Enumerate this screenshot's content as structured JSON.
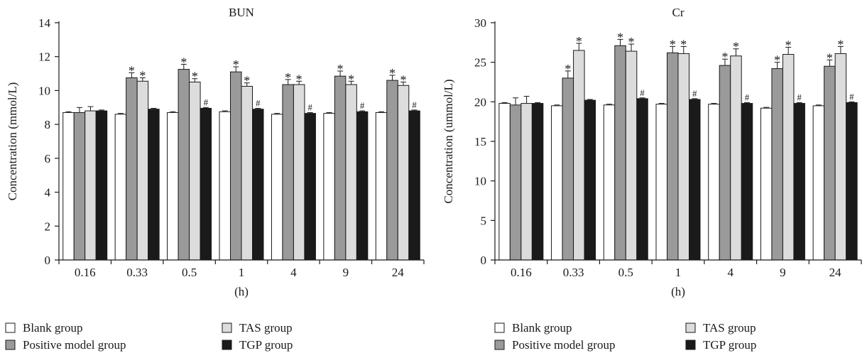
{
  "colors": {
    "Blank group": "#ffffff",
    "Positive model group": "#9a9a9a",
    "TAS group": "#dcdcdc",
    "TGP group": "#1a1a1a"
  },
  "chart_data": [
    {
      "type": "bar",
      "title": "BUN",
      "xlabel": "(h)",
      "ylabel": "Concentration (mmol/L)",
      "ylim": [
        0,
        14
      ],
      "yticks": [
        0,
        2,
        4,
        6,
        8,
        10,
        12,
        14
      ],
      "categories": [
        "0.16",
        "0.33",
        "0.5",
        "1",
        "4",
        "9",
        "24"
      ],
      "series": [
        {
          "name": "Blank group",
          "values": [
            8.7,
            8.6,
            8.7,
            8.75,
            8.6,
            8.65,
            8.7
          ],
          "errors": [
            0.05,
            0.05,
            0.05,
            0.05,
            0.05,
            0.05,
            0.05
          ],
          "marks": [
            "",
            "",
            "",
            "",
            "",
            "",
            ""
          ]
        },
        {
          "name": "Positive model group",
          "values": [
            8.7,
            10.75,
            11.25,
            11.1,
            10.35,
            10.85,
            10.6
          ],
          "errors": [
            0.3,
            0.3,
            0.3,
            0.3,
            0.3,
            0.3,
            0.3
          ],
          "marks": [
            "",
            "*",
            "*",
            "*",
            "*",
            "*",
            "*"
          ]
        },
        {
          "name": "TAS group",
          "values": [
            8.8,
            10.55,
            10.5,
            10.25,
            10.35,
            10.35,
            10.3
          ],
          "errors": [
            0.25,
            0.2,
            0.2,
            0.2,
            0.2,
            0.2,
            0.2
          ],
          "marks": [
            "",
            "*",
            "*",
            "*",
            "*",
            "*",
            "*"
          ]
        },
        {
          "name": "TGP group",
          "values": [
            8.8,
            8.9,
            8.95,
            8.9,
            8.65,
            8.75,
            8.8
          ],
          "errors": [
            0.05,
            0.05,
            0.05,
            0.05,
            0.05,
            0.05,
            0.05
          ],
          "marks": [
            "",
            "",
            "#",
            "#",
            "#",
            "#",
            "#"
          ]
        }
      ]
    },
    {
      "type": "bar",
      "title": "Cr",
      "xlabel": "(h)",
      "ylabel": "Concentration (ummol/L)",
      "ylim": [
        0,
        30
      ],
      "yticks": [
        0,
        5,
        10,
        15,
        20,
        25,
        30
      ],
      "categories": [
        "0.16",
        "0.33",
        "0.5",
        "1",
        "4",
        "9",
        "24"
      ],
      "series": [
        {
          "name": "Blank group",
          "values": [
            19.8,
            19.5,
            19.6,
            19.7,
            19.7,
            19.2,
            19.5
          ],
          "errors": [
            0.1,
            0.1,
            0.1,
            0.1,
            0.1,
            0.1,
            0.1
          ],
          "marks": [
            "",
            "",
            "",
            "",
            "",
            "",
            ""
          ]
        },
        {
          "name": "Positive model group",
          "values": [
            19.6,
            23.0,
            27.1,
            26.2,
            24.6,
            24.2,
            24.5
          ],
          "errors": [
            0.9,
            0.9,
            0.8,
            0.8,
            0.8,
            0.8,
            0.8
          ],
          "marks": [
            "",
            "*",
            "*",
            "*",
            "*",
            "*",
            "*"
          ]
        },
        {
          "name": "TAS group",
          "values": [
            19.8,
            26.5,
            26.4,
            26.1,
            25.8,
            26.0,
            26.1
          ],
          "errors": [
            0.9,
            0.9,
            0.9,
            0.9,
            0.9,
            0.9,
            0.9
          ],
          "marks": [
            "",
            "*",
            "*",
            "*",
            "*",
            "*",
            "*"
          ]
        },
        {
          "name": "TGP group",
          "values": [
            19.8,
            20.2,
            20.4,
            20.3,
            19.8,
            19.8,
            19.9
          ],
          "errors": [
            0.1,
            0.1,
            0.1,
            0.1,
            0.1,
            0.1,
            0.1
          ],
          "marks": [
            "",
            "",
            "#",
            "#",
            "#",
            "#",
            "#"
          ]
        }
      ]
    }
  ]
}
